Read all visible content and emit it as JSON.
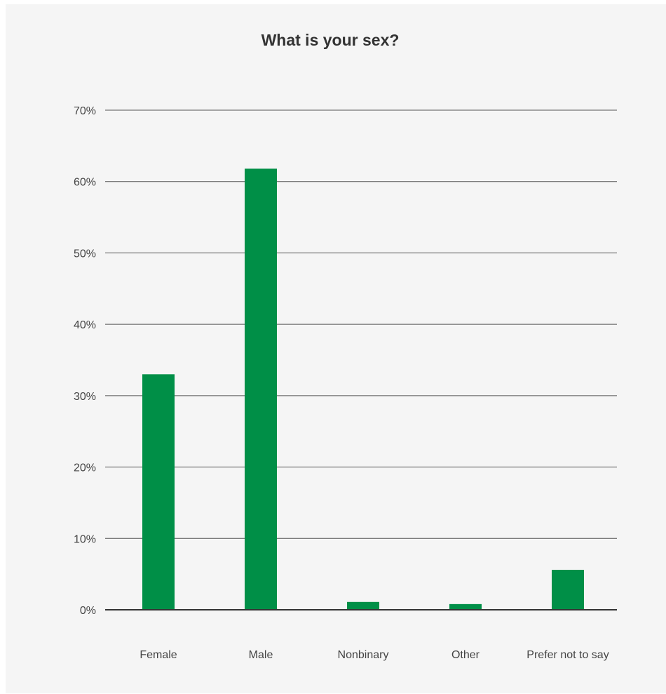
{
  "chart_data": {
    "type": "bar",
    "title": "What is your sex?",
    "xlabel": "",
    "ylabel": "",
    "categories": [
      "Female",
      "Male",
      "Nonbinary",
      "Other",
      "Prefer not to say"
    ],
    "values": [
      33.0,
      61.8,
      1.1,
      0.8,
      5.6
    ],
    "ylim": [
      0,
      70
    ],
    "yticks": [
      0,
      10,
      20,
      30,
      40,
      50,
      60,
      70
    ],
    "ytick_labels": [
      "0%",
      "10%",
      "20%",
      "30%",
      "40%",
      "50%",
      "60%",
      "70%"
    ],
    "grid": true,
    "legend": "none",
    "bar_color": "#008f47"
  }
}
